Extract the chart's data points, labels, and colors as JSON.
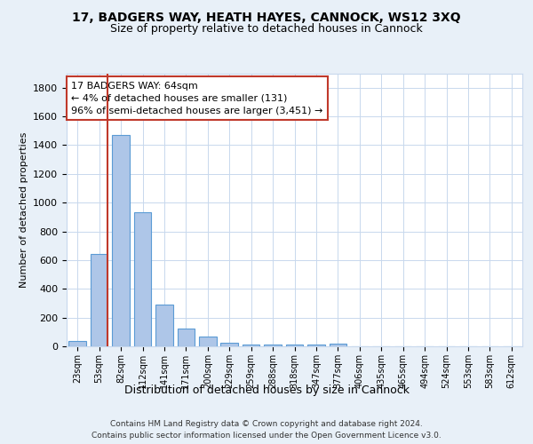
{
  "title1": "17, BADGERS WAY, HEATH HAYES, CANNOCK, WS12 3XQ",
  "title2": "Size of property relative to detached houses in Cannock",
  "xlabel": "Distribution of detached houses by size in Cannock",
  "ylabel": "Number of detached properties",
  "categories": [
    "23sqm",
    "53sqm",
    "82sqm",
    "112sqm",
    "141sqm",
    "171sqm",
    "200sqm",
    "229sqm",
    "259sqm",
    "288sqm",
    "318sqm",
    "347sqm",
    "377sqm",
    "406sqm",
    "435sqm",
    "465sqm",
    "494sqm",
    "524sqm",
    "553sqm",
    "583sqm",
    "612sqm"
  ],
  "values": [
    40,
    645,
    1470,
    935,
    290,
    125,
    65,
    25,
    15,
    10,
    10,
    10,
    18,
    0,
    0,
    0,
    0,
    0,
    0,
    0,
    0
  ],
  "bar_color": "#aec6e8",
  "bar_edge_color": "#5b9bd5",
  "vline_color": "#c0392b",
  "annotation_text": "17 BADGERS WAY: 64sqm\n← 4% of detached houses are smaller (131)\n96% of semi-detached houses are larger (3,451) →",
  "annotation_box_color": "#ffffff",
  "annotation_box_edge_color": "#c0392b",
  "ylim": [
    0,
    1900
  ],
  "yticks": [
    0,
    200,
    400,
    600,
    800,
    1000,
    1200,
    1400,
    1600,
    1800
  ],
  "footer1": "Contains HM Land Registry data © Crown copyright and database right 2024.",
  "footer2": "Contains public sector information licensed under the Open Government Licence v3.0.",
  "bg_color": "#e8f0f8",
  "plot_bg_color": "#ffffff",
  "grid_color": "#c8d8ed"
}
